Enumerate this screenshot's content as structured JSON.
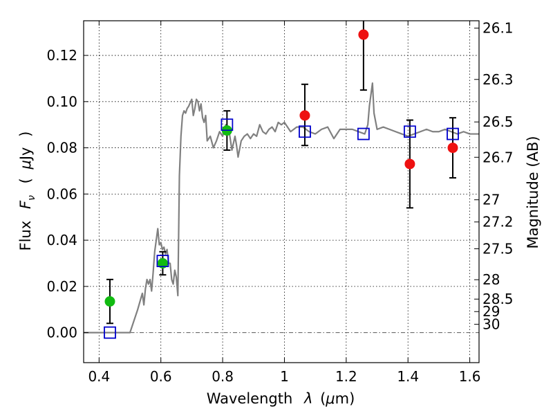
{
  "chart_data": {
    "type": "scatter",
    "xlabel": "Wavelength",
    "xlabel_symbol": "λ",
    "xlabel_unit_open": "(",
    "xlabel_unit_mu": "μ",
    "xlabel_unit_rest": "m)",
    "ylabel": "Flux",
    "ylabel_symbol": "F",
    "ylabel_subscript": "ν",
    "ylabel_unit_open": "(",
    "ylabel_unit_mu": "μ",
    "ylabel_unit_rest": "Jy",
    "ylabel_unit_close": ")",
    "y2label": "Magnitude (AB)",
    "xlim": [
      0.35,
      1.63
    ],
    "ylim": [
      -0.013,
      0.135
    ],
    "grid": true,
    "x_ticks": [
      0.4,
      0.6,
      0.8,
      1.0,
      1.2,
      1.4,
      1.6
    ],
    "x_tick_labels": [
      "0.4",
      "0.6",
      "0.8",
      "1",
      "1.2",
      "1.4",
      "1.6"
    ],
    "y_ticks": [
      0.0,
      0.02,
      0.04,
      0.06,
      0.08,
      0.1,
      0.12
    ],
    "y_tick_labels": [
      "0.00",
      "0.02",
      "0.04",
      "0.06",
      "0.08",
      "0.10",
      "0.12"
    ],
    "y2_ticks": [
      {
        "label": "26.1",
        "flux": 0.1318
      },
      {
        "label": "26.3",
        "flux": 0.1096
      },
      {
        "label": "26.5",
        "flux": 0.0912
      },
      {
        "label": "26.7",
        "flux": 0.0759
      },
      {
        "label": "27",
        "flux": 0.0575
      },
      {
        "label": "27.2",
        "flux": 0.0479
      },
      {
        "label": "27.5",
        "flux": 0.0363
      },
      {
        "label": "28",
        "flux": 0.0229
      },
      {
        "label": "28.5",
        "flux": 0.0145
      },
      {
        "label": "29",
        "flux": 0.0091
      },
      {
        "label": "30",
        "flux": 0.0036
      }
    ],
    "colors": {
      "model": "#808080",
      "model_photometry": "#0000cc",
      "hst_points": "#11bb11",
      "ir_points": "#ee1111",
      "errorbar": "#000000",
      "zero_line": "#555555"
    },
    "model_spectrum": {
      "x": [
        0.35,
        0.5,
        0.51,
        0.525,
        0.54,
        0.545,
        0.55,
        0.555,
        0.56,
        0.565,
        0.57,
        0.575,
        0.58,
        0.585,
        0.59,
        0.595,
        0.6,
        0.605,
        0.61,
        0.615,
        0.62,
        0.625,
        0.63,
        0.635,
        0.64,
        0.645,
        0.65,
        0.655,
        0.66,
        0.665,
        0.67,
        0.675,
        0.68,
        0.685,
        0.69,
        0.7,
        0.705,
        0.71,
        0.715,
        0.72,
        0.725,
        0.73,
        0.735,
        0.74,
        0.745,
        0.75,
        0.76,
        0.77,
        0.78,
        0.79,
        0.8,
        0.81,
        0.82,
        0.83,
        0.84,
        0.845,
        0.85,
        0.86,
        0.87,
        0.88,
        0.89,
        0.9,
        0.91,
        0.92,
        0.93,
        0.94,
        0.95,
        0.96,
        0.97,
        0.98,
        0.99,
        1.0,
        1.02,
        1.04,
        1.06,
        1.08,
        1.1,
        1.12,
        1.14,
        1.16,
        1.18,
        1.2,
        1.22,
        1.24,
        1.26,
        1.27,
        1.275,
        1.28,
        1.285,
        1.29,
        1.3,
        1.32,
        1.34,
        1.36,
        1.38,
        1.4,
        1.42,
        1.44,
        1.46,
        1.48,
        1.5,
        1.52,
        1.54,
        1.56,
        1.58,
        1.6,
        1.63
      ],
      "y": [
        0.0,
        0.0,
        0.004,
        0.01,
        0.017,
        0.012,
        0.019,
        0.023,
        0.021,
        0.023,
        0.018,
        0.026,
        0.035,
        0.04,
        0.045,
        0.038,
        0.039,
        0.036,
        0.037,
        0.034,
        0.036,
        0.03,
        0.03,
        0.023,
        0.021,
        0.027,
        0.024,
        0.016,
        0.068,
        0.085,
        0.094,
        0.096,
        0.095,
        0.097,
        0.098,
        0.101,
        0.094,
        0.097,
        0.101,
        0.1,
        0.096,
        0.099,
        0.093,
        0.091,
        0.094,
        0.083,
        0.085,
        0.08,
        0.083,
        0.087,
        0.085,
        0.09,
        0.088,
        0.079,
        0.085,
        0.081,
        0.076,
        0.083,
        0.085,
        0.086,
        0.084,
        0.086,
        0.085,
        0.09,
        0.087,
        0.086,
        0.088,
        0.089,
        0.087,
        0.091,
        0.09,
        0.091,
        0.087,
        0.089,
        0.089,
        0.087,
        0.086,
        0.088,
        0.089,
        0.084,
        0.088,
        0.088,
        0.088,
        0.087,
        0.086,
        0.09,
        0.098,
        0.103,
        0.108,
        0.095,
        0.088,
        0.089,
        0.088,
        0.087,
        0.086,
        0.085,
        0.086,
        0.087,
        0.088,
        0.087,
        0.087,
        0.088,
        0.087,
        0.086,
        0.087,
        0.086,
        0.086
      ]
    },
    "model_photometry": {
      "x": [
        0.435,
        0.606,
        0.814,
        1.066,
        1.256,
        1.406,
        1.545
      ],
      "y": [
        0.0,
        0.031,
        0.09,
        0.087,
        0.086,
        0.087,
        0.086
      ]
    },
    "hst_points": {
      "x": [
        0.435,
        0.606,
        0.814
      ],
      "y": [
        0.0135,
        0.03,
        0.0875
      ],
      "err_low": [
        0.0095,
        0.005,
        0.0085
      ],
      "err_high": [
        0.0095,
        0.005,
        0.0085
      ]
    },
    "ir_points": {
      "x": [
        1.066,
        1.256,
        1.406,
        1.545
      ],
      "y": [
        0.094,
        0.129,
        0.073,
        0.08
      ],
      "err_low": [
        0.013,
        0.024,
        0.019,
        0.013
      ],
      "err_high": [
        0.0135,
        0.024,
        0.019,
        0.013
      ]
    }
  }
}
